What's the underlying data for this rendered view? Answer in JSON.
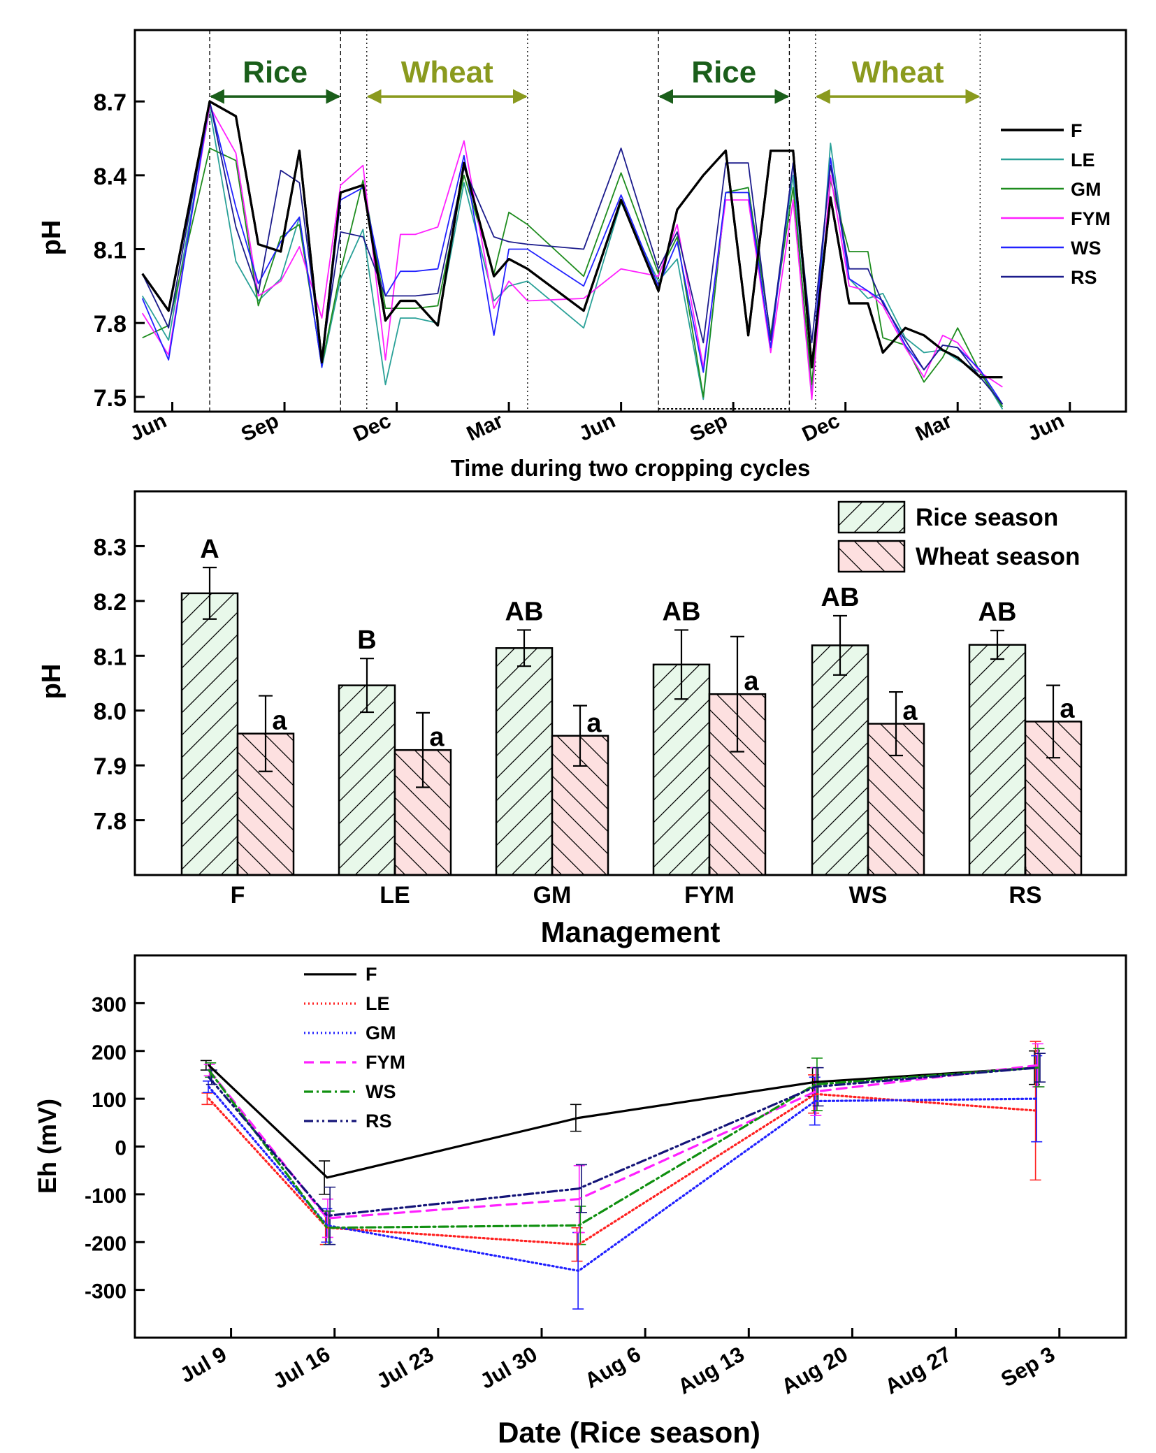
{
  "chart_data": [
    {
      "type": "line",
      "panel": "top",
      "title": "",
      "xlabel": "Time during two cropping cycles",
      "ylabel": "pH",
      "ylim": [
        7.44,
        8.99
      ],
      "xlim": [
        -1.0,
        25.5
      ],
      "x_unit": "months since June (year 1)",
      "yticks": [
        "8.7",
        "8.4",
        "8.1",
        "7.8",
        "7.5"
      ],
      "ytick_values": [
        8.7,
        8.4,
        8.1,
        7.8,
        7.5
      ],
      "xticks": [
        "Jun",
        "Sep",
        "Dec",
        "Mar",
        "Jun",
        "Sep",
        "Dec",
        "Mar",
        "Jun"
      ],
      "xtick_values": [
        0,
        3,
        6,
        9,
        12,
        15,
        18,
        21,
        24
      ],
      "season_labels": [
        {
          "label": "Rice",
          "start": 1.0,
          "end": 4.5,
          "color": "#1a5e1a"
        },
        {
          "label": "Wheat",
          "start": 5.2,
          "end": 9.5,
          "color": "#8a9a1e"
        },
        {
          "label": "Rice",
          "start": 13.0,
          "end": 16.5,
          "color": "#1a5e1a"
        },
        {
          "label": "Wheat",
          "start": 17.2,
          "end": 21.6,
          "color": "#8a9a1e"
        }
      ],
      "x": [
        -0.8,
        -0.1,
        1.0,
        1.7,
        2.3,
        2.9,
        3.4,
        4.0,
        4.5,
        5.1,
        5.7,
        6.1,
        6.5,
        7.1,
        7.8,
        8.6,
        9.0,
        9.5,
        11.0,
        12.0,
        13.0,
        13.5,
        14.2,
        14.8,
        15.4,
        16.0,
        16.6,
        17.1,
        17.6,
        18.1,
        18.6,
        19.0,
        19.6,
        20.1,
        20.6,
        21.0,
        21.6,
        22.2
      ],
      "series": [
        {
          "name": "F",
          "color": "#000000",
          "width": 3.2,
          "values": [
            8.0,
            7.85,
            8.7,
            8.64,
            8.12,
            8.09,
            8.5,
            7.64,
            8.33,
            8.36,
            7.81,
            7.89,
            7.89,
            7.79,
            8.45,
            7.99,
            8.06,
            8.02,
            7.85,
            8.3,
            7.93,
            8.26,
            8.4,
            8.5,
            7.75,
            8.5,
            8.5,
            7.62,
            8.31,
            7.88,
            7.88,
            7.68,
            7.78,
            7.75,
            7.69,
            7.66,
            7.58,
            7.58
          ]
        },
        {
          "name": "LE",
          "color": "#2aa198",
          "width": 1.8,
          "values": [
            7.91,
            7.73,
            8.67,
            8.05,
            7.89,
            7.98,
            8.23,
            7.62,
            7.98,
            8.18,
            7.55,
            7.82,
            7.82,
            7.8,
            8.37,
            7.89,
            7.95,
            7.97,
            7.78,
            8.29,
            7.97,
            8.06,
            7.49,
            8.33,
            8.35,
            7.75,
            8.4,
            7.51,
            8.53,
            7.98,
            7.9,
            7.92,
            7.74,
            7.68,
            7.69,
            7.65,
            7.6,
            7.45
          ]
        },
        {
          "name": "GM",
          "color": "#1e8c1e",
          "width": 1.8,
          "values": [
            7.74,
            7.79,
            8.51,
            8.46,
            7.87,
            8.15,
            8.2,
            7.63,
            8.01,
            8.38,
            7.86,
            7.86,
            7.86,
            7.87,
            8.4,
            8.0,
            8.25,
            8.2,
            7.99,
            8.41,
            8.0,
            8.15,
            7.5,
            8.33,
            8.35,
            7.75,
            8.35,
            7.55,
            8.38,
            8.09,
            8.09,
            7.74,
            7.71,
            7.56,
            7.66,
            7.78,
            7.6,
            7.46
          ]
        },
        {
          "name": "FYM",
          "color": "#ff20ff",
          "width": 1.8,
          "values": [
            7.84,
            7.67,
            8.68,
            8.49,
            7.91,
            7.97,
            8.11,
            7.82,
            8.36,
            8.44,
            7.65,
            8.16,
            8.16,
            8.19,
            8.54,
            7.86,
            7.97,
            7.89,
            7.9,
            8.02,
            7.99,
            8.2,
            7.62,
            8.3,
            8.3,
            7.68,
            8.3,
            7.49,
            8.4,
            7.95,
            7.93,
            7.87,
            7.7,
            7.58,
            7.75,
            7.72,
            7.6,
            7.54
          ]
        },
        {
          "name": "WS",
          "color": "#2222ff",
          "width": 1.8,
          "values": [
            7.9,
            7.65,
            8.7,
            8.27,
            7.96,
            8.13,
            8.23,
            7.62,
            8.3,
            8.35,
            7.91,
            8.01,
            8.01,
            8.02,
            8.48,
            7.75,
            8.1,
            8.1,
            7.95,
            8.32,
            7.95,
            8.13,
            7.6,
            8.33,
            8.33,
            7.7,
            8.45,
            7.62,
            8.47,
            7.98,
            7.93,
            7.89,
            7.71,
            7.61,
            7.71,
            7.7,
            7.61,
            7.47
          ]
        },
        {
          "name": "RS",
          "color": "#1c1c8c",
          "width": 1.8,
          "values": [
            8.0,
            7.78,
            8.7,
            8.19,
            7.92,
            8.42,
            8.37,
            7.66,
            8.17,
            8.15,
            7.91,
            7.91,
            7.91,
            7.92,
            8.43,
            8.15,
            8.13,
            8.12,
            8.1,
            8.51,
            8.02,
            8.17,
            7.72,
            8.45,
            8.45,
            7.73,
            8.45,
            7.72,
            8.44,
            8.02,
            8.02,
            7.88,
            7.73,
            7.61,
            7.71,
            7.7,
            7.58,
            7.47
          ]
        }
      ]
    },
    {
      "type": "bar",
      "panel": "middle",
      "title": "",
      "xlabel": "Management",
      "ylabel": "pH",
      "ylim": [
        7.7,
        8.4
      ],
      "yticks": [
        "8.3",
        "8.2",
        "8.1",
        "8.0",
        "7.9",
        "7.8"
      ],
      "ytick_values": [
        8.3,
        8.2,
        8.1,
        8.0,
        7.9,
        7.8
      ],
      "categories": [
        "F",
        "LE",
        "GM",
        "FYM",
        "WS",
        "RS"
      ],
      "legend": [
        "Rice season",
        "Wheat season"
      ],
      "series": [
        {
          "name": "Rice season",
          "fill": "#e8f8ea",
          "values": [
            8.214,
            8.046,
            8.114,
            8.084,
            8.119,
            8.12
          ],
          "errors": [
            0.047,
            0.049,
            0.033,
            0.063,
            0.054,
            0.026
          ],
          "letters": [
            "A",
            "B",
            "AB",
            "AB",
            "AB",
            "AB"
          ]
        },
        {
          "name": "Wheat season",
          "fill": "#fde0e0",
          "values": [
            7.958,
            7.928,
            7.954,
            8.03,
            7.976,
            7.98
          ],
          "errors": [
            0.069,
            0.068,
            0.055,
            0.105,
            0.058,
            0.066
          ],
          "letters": [
            "a",
            "a",
            "a",
            "a",
            "a",
            "a"
          ]
        }
      ]
    },
    {
      "type": "line",
      "panel": "bottom",
      "title": "",
      "xlabel": "Date (Rice season)",
      "ylabel": "Eh (mV)",
      "ylim": [
        -400,
        400
      ],
      "xlim": [
        -6.5,
        60.5
      ],
      "x_unit": "days since Jul 9",
      "yticks": [
        "300",
        "200",
        "100",
        "0",
        "-100",
        "-200",
        "-300"
      ],
      "ytick_values": [
        300,
        200,
        100,
        0,
        -100,
        -200,
        -300
      ],
      "xticks": [
        "Jul 9",
        "Jul 16",
        "Jul 23",
        "Jul 30",
        "Aug 6",
        "Aug 13",
        "Aug 20",
        "Aug 27",
        "Sep 3"
      ],
      "xtick_values": [
        0,
        7,
        14,
        21,
        28,
        35,
        42,
        49,
        56
      ],
      "x": [
        -1.5,
        6.5,
        23.5,
        39.5,
        54.5
      ],
      "series": [
        {
          "name": "F",
          "color": "#000000",
          "dash": "",
          "values": [
            170,
            -65,
            60,
            135,
            165
          ],
          "errors": [
            10,
            35,
            28,
            30,
            35
          ]
        },
        {
          "name": "LE",
          "color": "#ff2020",
          "dash": "2 4",
          "values": [
            100,
            -170,
            -205,
            110,
            75
          ],
          "errors": [
            12,
            35,
            35,
            40,
            145
          ]
        },
        {
          "name": "GM",
          "color": "#2020ff",
          "dash": "2 4",
          "values": [
            125,
            -165,
            -260,
            95,
            100
          ],
          "errors": [
            12,
            35,
            80,
            50,
            90
          ]
        },
        {
          "name": "FYM",
          "color": "#ff20ff",
          "dash": "14 9",
          "values": [
            160,
            -150,
            -110,
            115,
            170
          ],
          "errors": [
            12,
            40,
            70,
            50,
            45
          ]
        },
        {
          "name": "WS",
          "color": "#109010",
          "dash": "13 5 3 5",
          "values": [
            160,
            -170,
            -165,
            130,
            165
          ],
          "errors": [
            15,
            35,
            40,
            55,
            40
          ]
        },
        {
          "name": "RS",
          "color": "#141478",
          "dash": "13 5 3 5 3 5",
          "values": [
            145,
            -145,
            -88,
            125,
            165
          ],
          "errors": [
            15,
            60,
            50,
            40,
            30
          ]
        }
      ]
    }
  ]
}
